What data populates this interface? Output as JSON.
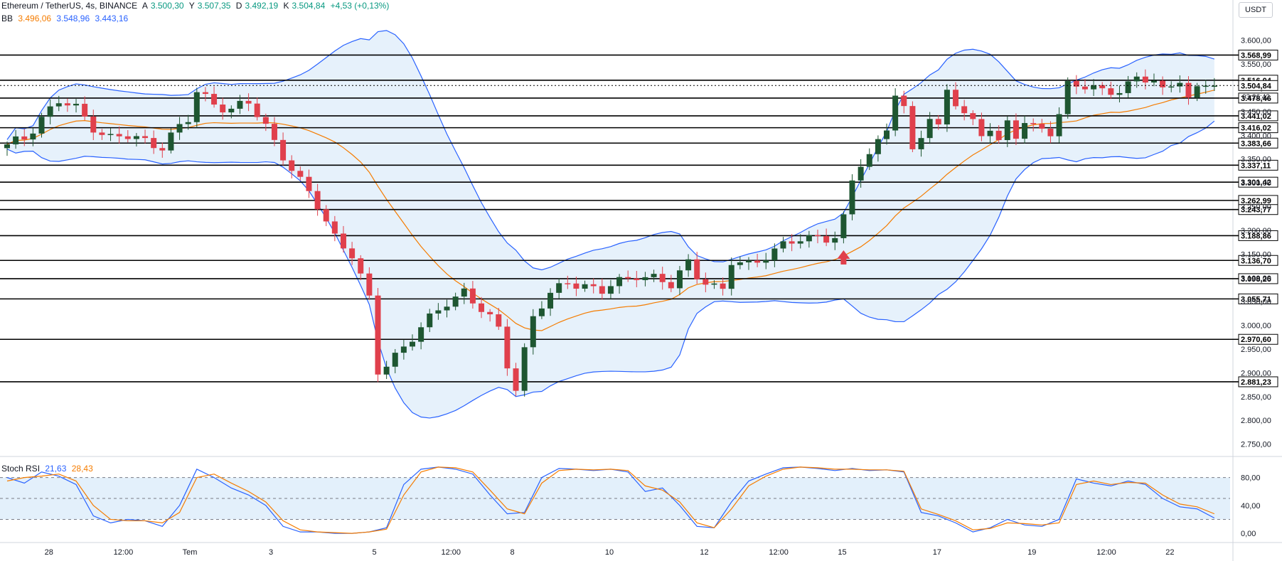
{
  "header": {
    "symbol_line": "Ethereum / TetherUS, 4s, BINANCE",
    "ohlc": {
      "open_label": "A",
      "open": "3.500,30",
      "high_label": "Y",
      "high": "3.507,35",
      "low_label": "D",
      "low": "3.492,19",
      "close_label": "K",
      "close": "3.504,84",
      "change": "+4,53 (+0,13%)"
    },
    "bb_label": "BB",
    "bb_values": [
      "3.496,06",
      "3.548,96",
      "3.443,16"
    ],
    "rsi_label": "Stoch RSI",
    "rsi_values": [
      "21,63",
      "28,43"
    ],
    "unit": "USDT"
  },
  "colors": {
    "up": "#1e5631",
    "down": "#e0404c",
    "bb_basis": "#f57c00",
    "bb_band": "#2962ff",
    "bb_fill": "#e3f0fb",
    "rsi_k": "#2962ff",
    "rsi_d": "#f57c00",
    "level_line": "#000000",
    "marker": "#e0404c"
  },
  "chart_data": [
    {
      "type": "candlestick",
      "title": "Ethereum / TetherUS, 4s, BINANCE",
      "ylim": [
        2730,
        3625
      ],
      "y_ticks": [
        "3.600,00",
        "3.550,00",
        "3.500,00",
        "3.450,00",
        "3.400,00",
        "3.350,00",
        "3.300,00",
        "3.250,00",
        "3.200,00",
        "3.150,00",
        "3.100,00",
        "3.050,00",
        "3.000,00",
        "2.950,00",
        "2.900,00",
        "2.850,00",
        "2.800,00",
        "2.750,00"
      ],
      "y_tick_values": [
        3600,
        3550,
        3500,
        3450,
        3400,
        3350,
        3300,
        3250,
        3200,
        3150,
        3100,
        3050,
        3000,
        2950,
        2900,
        2850,
        2800,
        2750
      ],
      "x_ticks": [
        "28",
        "12:00",
        "Tem",
        "3",
        "5",
        "12:00",
        "8",
        "10",
        "12",
        "12:00",
        "15",
        "17",
        "19",
        "12:00",
        "22"
      ],
      "x_tick_index": [
        5,
        13,
        21,
        31,
        43,
        51,
        59,
        70,
        81,
        89,
        97,
        108,
        119,
        127,
        135
      ],
      "horizontal_levels": [
        {
          "value": 3568.99,
          "label": "3.568,99"
        },
        {
          "value": 3516.04,
          "label": "3.516,04"
        },
        {
          "value": 3478.46,
          "label": "3.478,46"
        },
        {
          "value": 3441.02,
          "label": "3.441,02"
        },
        {
          "value": 3416.02,
          "label": "3.416,02"
        },
        {
          "value": 3383.66,
          "label": "3.383,66"
        },
        {
          "value": 3337.11,
          "label": "3.337,11"
        },
        {
          "value": 3301.42,
          "label": "3.301,42"
        },
        {
          "value": 3262.99,
          "label": "3.262,99"
        },
        {
          "value": 3243.77,
          "label": "3.243,77"
        },
        {
          "value": 3188.86,
          "label": "3.188,86"
        },
        {
          "value": 3136.7,
          "label": "3.136,70"
        },
        {
          "value": 3098.26,
          "label": "3.098,26"
        },
        {
          "value": 3055.71,
          "label": "3.055,71"
        },
        {
          "value": 2970.6,
          "label": "2.970,60"
        },
        {
          "value": 2881.23,
          "label": "2.881,23"
        }
      ],
      "current_price": {
        "value": 3504.84,
        "label": "3.504,84",
        "countdown": "03:26:42"
      },
      "close_path": [
        [
          0,
          3375
        ],
        [
          2,
          3395
        ],
        [
          4,
          3440
        ],
        [
          6,
          3470
        ],
        [
          8,
          3455
        ],
        [
          10,
          3420
        ],
        [
          12,
          3395
        ],
        [
          14,
          3395
        ],
        [
          16,
          3388
        ],
        [
          18,
          3380
        ],
        [
          19,
          3400
        ],
        [
          21,
          3430
        ],
        [
          22,
          3490
        ],
        [
          24,
          3470
        ],
        [
          26,
          3455
        ],
        [
          28,
          3465
        ],
        [
          30,
          3420
        ],
        [
          32,
          3360
        ],
        [
          34,
          3300
        ],
        [
          36,
          3250
        ],
        [
          38,
          3190
        ],
        [
          40,
          3150
        ],
        [
          42,
          3050
        ],
        [
          43,
          2900
        ],
        [
          45,
          2940
        ],
        [
          47,
          2975
        ],
        [
          49,
          3010
        ],
        [
          51,
          3050
        ],
        [
          53,
          3075
        ],
        [
          55,
          3030
        ],
        [
          57,
          2990
        ],
        [
          58,
          2920
        ],
        [
          59,
          2870
        ],
        [
          60,
          2950
        ],
        [
          61,
          3020
        ],
        [
          63,
          3060
        ],
        [
          65,
          3095
        ],
        [
          67,
          3085
        ],
        [
          69,
          3070
        ],
        [
          71,
          3090
        ],
        [
          73,
          3110
        ],
        [
          75,
          3100
        ],
        [
          77,
          3080
        ],
        [
          79,
          3135
        ],
        [
          80,
          3110
        ],
        [
          82,
          3080
        ],
        [
          83,
          3070
        ],
        [
          84,
          3130
        ],
        [
          86,
          3130
        ],
        [
          88,
          3150
        ],
        [
          90,
          3165
        ],
        [
          92,
          3180
        ],
        [
          94,
          3190
        ],
        [
          96,
          3185
        ],
        [
          97,
          3220
        ],
        [
          98,
          3300
        ],
        [
          99,
          3340
        ],
        [
          100,
          3360
        ],
        [
          102,
          3420
        ],
        [
          103,
          3490
        ],
        [
          104,
          3450
        ],
        [
          105,
          3360
        ],
        [
          106,
          3400
        ],
        [
          107,
          3440
        ],
        [
          108,
          3420
        ],
        [
          109,
          3500
        ],
        [
          111,
          3440
        ],
        [
          112,
          3420
        ],
        [
          113,
          3400
        ],
        [
          114,
          3420
        ],
        [
          115,
          3390
        ],
        [
          116,
          3430
        ],
        [
          117,
          3400
        ],
        [
          118,
          3425
        ],
        [
          119,
          3410
        ],
        [
          121,
          3410
        ],
        [
          122,
          3450
        ],
        [
          123,
          3510
        ],
        [
          125,
          3500
        ],
        [
          127,
          3490
        ],
        [
          129,
          3500
        ],
        [
          131,
          3520
        ],
        [
          133,
          3510
        ],
        [
          134,
          3490
        ],
        [
          136,
          3525
        ],
        [
          137,
          3480
        ],
        [
          138,
          3495
        ],
        [
          139,
          3505
        ]
      ]
    },
    {
      "type": "line",
      "title": "Stoch RSI",
      "ylim": [
        -5,
        100
      ],
      "y_ticks": [
        "80,00",
        "40,00",
        "0,00"
      ],
      "y_tick_values": [
        80,
        40,
        0
      ],
      "bands": [
        80,
        50,
        20
      ],
      "series": [
        {
          "name": "K",
          "values_at": [
            [
              0,
              80
            ],
            [
              2,
              72
            ],
            [
              4,
              88
            ],
            [
              6,
              82
            ],
            [
              8,
              70
            ],
            [
              10,
              25
            ],
            [
              12,
              15
            ],
            [
              14,
              20
            ],
            [
              16,
              18
            ],
            [
              18,
              10
            ],
            [
              20,
              40
            ],
            [
              22,
              92
            ],
            [
              24,
              80
            ],
            [
              26,
              65
            ],
            [
              28,
              55
            ],
            [
              30,
              40
            ],
            [
              32,
              10
            ],
            [
              34,
              2
            ],
            [
              36,
              2
            ],
            [
              38,
              0
            ],
            [
              40,
              0
            ],
            [
              42,
              2
            ],
            [
              44,
              8
            ],
            [
              46,
              70
            ],
            [
              48,
              92
            ],
            [
              50,
              95
            ],
            [
              52,
              92
            ],
            [
              54,
              85
            ],
            [
              56,
              55
            ],
            [
              58,
              28
            ],
            [
              60,
              30
            ],
            [
              62,
              80
            ],
            [
              64,
              93
            ],
            [
              66,
              92
            ],
            [
              68,
              90
            ],
            [
              70,
              92
            ],
            [
              72,
              88
            ],
            [
              74,
              60
            ],
            [
              76,
              65
            ],
            [
              78,
              40
            ],
            [
              80,
              10
            ],
            [
              82,
              8
            ],
            [
              84,
              45
            ],
            [
              86,
              75
            ],
            [
              88,
              85
            ],
            [
              90,
              94
            ],
            [
              92,
              95
            ],
            [
              94,
              93
            ],
            [
              96,
              90
            ],
            [
              98,
              93
            ],
            [
              100,
              90
            ],
            [
              102,
              91
            ],
            [
              104,
              88
            ],
            [
              106,
              30
            ],
            [
              108,
              25
            ],
            [
              110,
              15
            ],
            [
              112,
              2
            ],
            [
              114,
              8
            ],
            [
              116,
              20
            ],
            [
              118,
              12
            ],
            [
              120,
              10
            ],
            [
              122,
              20
            ],
            [
              124,
              78
            ],
            [
              126,
              72
            ],
            [
              128,
              68
            ],
            [
              130,
              75
            ],
            [
              132,
              70
            ],
            [
              134,
              50
            ],
            [
              136,
              38
            ],
            [
              138,
              35
            ],
            [
              140,
              22
            ]
          ]
        },
        {
          "name": "D",
          "values_at": [
            [
              0,
              75
            ],
            [
              2,
              80
            ],
            [
              4,
              82
            ],
            [
              6,
              85
            ],
            [
              8,
              75
            ],
            [
              10,
              40
            ],
            [
              12,
              20
            ],
            [
              14,
              18
            ],
            [
              16,
              18
            ],
            [
              18,
              15
            ],
            [
              20,
              30
            ],
            [
              22,
              80
            ],
            [
              24,
              85
            ],
            [
              26,
              72
            ],
            [
              28,
              60
            ],
            [
              30,
              45
            ],
            [
              32,
              18
            ],
            [
              34,
              5
            ],
            [
              36,
              2
            ],
            [
              38,
              1
            ],
            [
              40,
              0
            ],
            [
              42,
              2
            ],
            [
              44,
              6
            ],
            [
              46,
              55
            ],
            [
              48,
              88
            ],
            [
              50,
              95
            ],
            [
              52,
              94
            ],
            [
              54,
              88
            ],
            [
              56,
              62
            ],
            [
              58,
              35
            ],
            [
              60,
              28
            ],
            [
              62,
              72
            ],
            [
              64,
              90
            ],
            [
              66,
              92
            ],
            [
              68,
              91
            ],
            [
              70,
              92
            ],
            [
              72,
              90
            ],
            [
              74,
              68
            ],
            [
              76,
              62
            ],
            [
              78,
              45
            ],
            [
              80,
              15
            ],
            [
              82,
              8
            ],
            [
              84,
              35
            ],
            [
              86,
              68
            ],
            [
              88,
              82
            ],
            [
              90,
              92
            ],
            [
              92,
              95
            ],
            [
              94,
              94
            ],
            [
              96,
              92
            ],
            [
              98,
              92
            ],
            [
              100,
              91
            ],
            [
              102,
              91
            ],
            [
              104,
              89
            ],
            [
              106,
              35
            ],
            [
              108,
              27
            ],
            [
              110,
              18
            ],
            [
              112,
              5
            ],
            [
              114,
              7
            ],
            [
              116,
              15
            ],
            [
              118,
              14
            ],
            [
              120,
              12
            ],
            [
              122,
              15
            ],
            [
              124,
              70
            ],
            [
              126,
              75
            ],
            [
              128,
              70
            ],
            [
              130,
              73
            ],
            [
              132,
              72
            ],
            [
              134,
              55
            ],
            [
              136,
              42
            ],
            [
              138,
              38
            ],
            [
              140,
              28
            ]
          ]
        }
      ]
    }
  ]
}
